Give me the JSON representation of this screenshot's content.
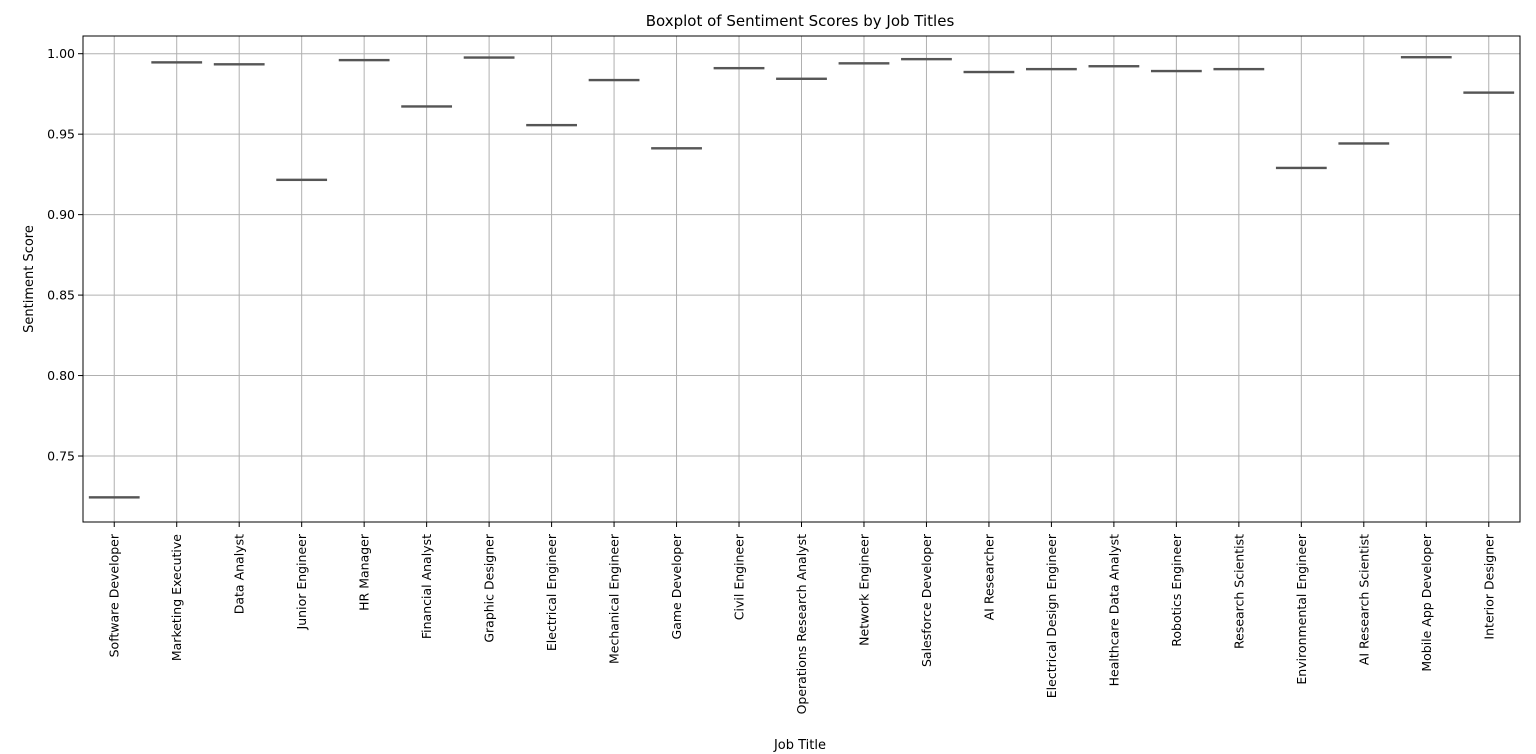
{
  "chart_data": {
    "type": "boxplot",
    "title": "Boxplot of Sentiment Scores by Job Titles",
    "xlabel": "Job Title",
    "ylabel": "Sentiment Score",
    "ylim": [
      0.709,
      1.011
    ],
    "yticks": [
      "0.75",
      "0.80",
      "0.85",
      "0.90",
      "0.95",
      "1.00"
    ],
    "grid": true,
    "colors": {
      "box_line": "#555555",
      "grid": "#b0b0b0",
      "axis": "#000000"
    },
    "categories": [
      "Software Developer",
      "Marketing Executive",
      "Data Analyst",
      "Junior Engineer",
      "HR Manager",
      "Financial Analyst",
      "Graphic Designer",
      "Electrical Engineer",
      "Mechanical Engineer",
      "Game Developer",
      "Civil Engineer",
      "Operations Research Analyst",
      "Network Engineer",
      "Salesforce Developer",
      "AI Researcher",
      "Electrical Design Engineer",
      "Healthcare Data Analyst",
      "Robotics Engineer",
      "Research Scientist",
      "Environmental Engineer",
      "AI Research Scientist",
      "Mobile App Developer",
      "Interior Designer"
    ],
    "values": [
      0.7245,
      0.9948,
      0.9936,
      0.9218,
      0.9962,
      0.9674,
      0.9978,
      0.9558,
      0.9838,
      0.9414,
      0.9912,
      0.9846,
      0.9942,
      0.9968,
      0.9888,
      0.9906,
      0.9924,
      0.9894,
      0.9906,
      0.9292,
      0.9444,
      0.998,
      0.976
    ]
  }
}
